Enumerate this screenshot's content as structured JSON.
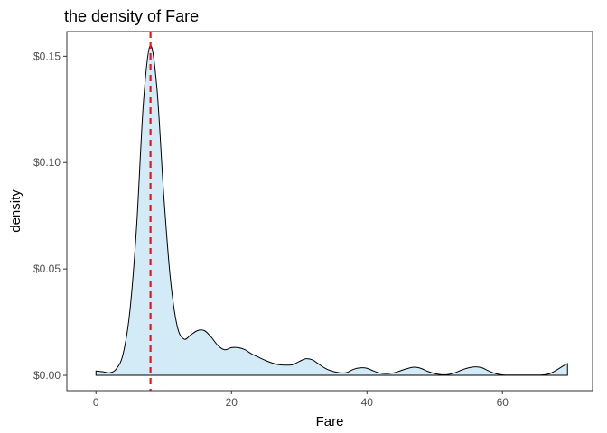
{
  "chart_data": {
    "type": "area",
    "title": "the density of Fare",
    "xlabel": "Fare",
    "ylabel": "density",
    "xlim": [
      -4.3,
      73.3
    ],
    "ylim": [
      -0.0072,
      0.1616
    ],
    "x_ticks": [
      0,
      20,
      40,
      60
    ],
    "x_tick_labels": [
      "0",
      "20",
      "40",
      "60"
    ],
    "y_ticks": [
      0.0,
      0.05,
      0.1,
      0.15
    ],
    "y_tick_labels": [
      "$0.00",
      "$0.05",
      "$0.10",
      "$0.15"
    ],
    "grid": false,
    "fill_color": "#d3ebf7",
    "line_color": "#000000",
    "reference_line": {
      "x": 8.05,
      "color": "#e8161c",
      "style": "dashed"
    },
    "series": [
      {
        "x": [
          0,
          1,
          2,
          3,
          4,
          5,
          6,
          7,
          8,
          9,
          10,
          11,
          12,
          13,
          14,
          15,
          16,
          17,
          18,
          19,
          20,
          21,
          22,
          23,
          24,
          25,
          26,
          27,
          28,
          29,
          30,
          31,
          32,
          33,
          34,
          35,
          36,
          37,
          38,
          39,
          40,
          41,
          42,
          43,
          44,
          45,
          46,
          47,
          48,
          49,
          50,
          51,
          52,
          53,
          54,
          55,
          56,
          57,
          58,
          59,
          60,
          61,
          62,
          63,
          64,
          65,
          66,
          67,
          68,
          69,
          69.6
        ],
        "y": [
          0.002,
          0.0017,
          0.0012,
          0.003,
          0.01,
          0.03,
          0.07,
          0.128,
          0.155,
          0.135,
          0.085,
          0.045,
          0.023,
          0.017,
          0.019,
          0.021,
          0.021,
          0.018,
          0.014,
          0.012,
          0.013,
          0.013,
          0.012,
          0.01,
          0.0085,
          0.007,
          0.0058,
          0.005,
          0.0048,
          0.005,
          0.0065,
          0.0078,
          0.0072,
          0.005,
          0.003,
          0.0018,
          0.0012,
          0.0013,
          0.0028,
          0.0035,
          0.0033,
          0.002,
          0.001,
          0.0008,
          0.0012,
          0.0022,
          0.0032,
          0.0038,
          0.0032,
          0.0018,
          0.0008,
          0.0003,
          0.0004,
          0.0012,
          0.0025,
          0.0035,
          0.004,
          0.0035,
          0.002,
          0.0008,
          0.0002,
          0.0001,
          0.0001,
          0.0001,
          0.0001,
          0.0001,
          0.0002,
          0.0008,
          0.0025,
          0.0045,
          0.0055
        ]
      }
    ]
  }
}
